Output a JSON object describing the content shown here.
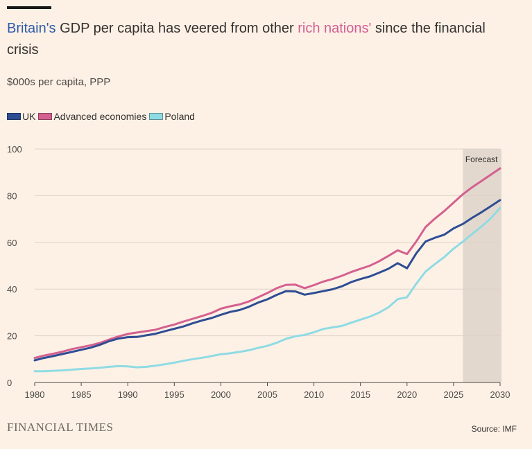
{
  "header": {
    "title_uk": "Britain's",
    "title_mid": " GDP per capita has veered from other ",
    "title_rich": "rich nations'",
    "title_end": " since the financial crisis",
    "subtitle": "$000s per capita, PPP"
  },
  "legend": [
    {
      "label": "UK",
      "color": "#2e4d93"
    },
    {
      "label": "Advanced economies",
      "color": "#d4608f"
    },
    {
      "label": "Poland",
      "color": "#8fdbe3"
    }
  ],
  "footer": {
    "logo": "FINANCIAL TIMES",
    "source": "Source: IMF"
  },
  "chart_data": {
    "type": "line",
    "title": "Britain's GDP per capita has veered from other rich nations' since the financial crisis",
    "ylabel": "$000s per capita, PPP",
    "xlim": [
      1980,
      2030
    ],
    "ylim": [
      0,
      100
    ],
    "x_ticks": [
      1980,
      1985,
      1990,
      1995,
      2000,
      2005,
      2010,
      2015,
      2020,
      2025,
      2030
    ],
    "y_ticks": [
      0,
      20,
      40,
      60,
      80,
      100
    ],
    "grid": true,
    "legend_position": "top-left",
    "forecast": {
      "label": "Forecast",
      "start": 2026,
      "end": 2030.5
    },
    "series": [
      {
        "name": "Advanced economies",
        "color": "#d4608f",
        "x": [
          1980,
          1981,
          1982,
          1983,
          1984,
          1985,
          1986,
          1987,
          1988,
          1989,
          1990,
          1991,
          1992,
          1993,
          1994,
          1995,
          1996,
          1997,
          1998,
          1999,
          2000,
          2001,
          2002,
          2003,
          2004,
          2005,
          2006,
          2007,
          2008,
          2009,
          2010,
          2011,
          2012,
          2013,
          2014,
          2015,
          2016,
          2017,
          2018,
          2019,
          2020,
          2021,
          2022,
          2023,
          2024,
          2025,
          2026,
          2027,
          2028,
          2029,
          2030
        ],
        "values": [
          10.5,
          11.5,
          12.3,
          13.2,
          14.3,
          15.1,
          15.9,
          16.9,
          18.4,
          19.7,
          20.8,
          21.4,
          22.0,
          22.6,
          23.8,
          24.8,
          26.1,
          27.3,
          28.5,
          29.8,
          31.6,
          32.6,
          33.4,
          34.7,
          36.5,
          38.3,
          40.4,
          41.8,
          41.9,
          40.4,
          41.7,
          43.2,
          44.3,
          45.7,
          47.3,
          48.7,
          50.0,
          51.9,
          54.2,
          56.6,
          55.0,
          60.4,
          66.6,
          70.2,
          73.4,
          77.0,
          80.6,
          83.6,
          86.3,
          89.0,
          91.7
        ]
      },
      {
        "name": "UK",
        "color": "#2e4d93",
        "x": [
          1980,
          1981,
          1982,
          1983,
          1984,
          1985,
          1986,
          1987,
          1988,
          1989,
          1990,
          1991,
          1992,
          1993,
          1994,
          1995,
          1996,
          1997,
          1998,
          1999,
          2000,
          2001,
          2002,
          2003,
          2004,
          2005,
          2006,
          2007,
          2008,
          2009,
          2010,
          2011,
          2012,
          2013,
          2014,
          2015,
          2016,
          2017,
          2018,
          2019,
          2020,
          2021,
          2022,
          2023,
          2024,
          2025,
          2026,
          2027,
          2028,
          2029,
          2030
        ],
        "values": [
          9.5,
          10.5,
          11.3,
          12.2,
          13.1,
          14.0,
          14.9,
          16.1,
          17.7,
          18.8,
          19.4,
          19.5,
          20.2,
          20.9,
          22.0,
          23.0,
          24.0,
          25.4,
          26.6,
          27.6,
          29.0,
          30.2,
          31.0,
          32.4,
          34.2,
          35.6,
          37.5,
          39.1,
          39.0,
          37.6,
          38.3,
          39.1,
          39.9,
          41.2,
          43.0,
          44.3,
          45.4,
          47.0,
          48.7,
          51.1,
          48.9,
          55.3,
          60.4,
          62.0,
          63.3,
          66.0,
          67.9,
          70.5,
          72.9,
          75.5,
          78.1
        ]
      },
      {
        "name": "Poland",
        "color": "#8fdbe3",
        "x": [
          1980,
          1981,
          1982,
          1983,
          1984,
          1985,
          1986,
          1987,
          1988,
          1989,
          1990,
          1991,
          1992,
          1993,
          1994,
          1995,
          1996,
          1997,
          1998,
          1999,
          2000,
          2001,
          2002,
          2003,
          2004,
          2005,
          2006,
          2007,
          2008,
          2009,
          2010,
          2011,
          2012,
          2013,
          2014,
          2015,
          2016,
          2017,
          2018,
          2019,
          2020,
          2021,
          2022,
          2023,
          2024,
          2025,
          2026,
          2027,
          2028,
          2029,
          2030
        ],
        "values": [
          4.8,
          4.8,
          5.0,
          5.2,
          5.5,
          5.8,
          6.0,
          6.3,
          6.7,
          7.0,
          6.9,
          6.5,
          6.7,
          7.2,
          7.8,
          8.5,
          9.3,
          10.0,
          10.6,
          11.3,
          12.1,
          12.5,
          13.1,
          13.8,
          14.8,
          15.7,
          17.0,
          18.7,
          19.8,
          20.4,
          21.5,
          22.9,
          23.6,
          24.2,
          25.6,
          26.9,
          28.2,
          29.9,
          32.2,
          35.7,
          36.5,
          42.3,
          47.5,
          50.7,
          53.7,
          57.3,
          60.3,
          63.6,
          66.8,
          70.3,
          74.8
        ]
      }
    ]
  }
}
